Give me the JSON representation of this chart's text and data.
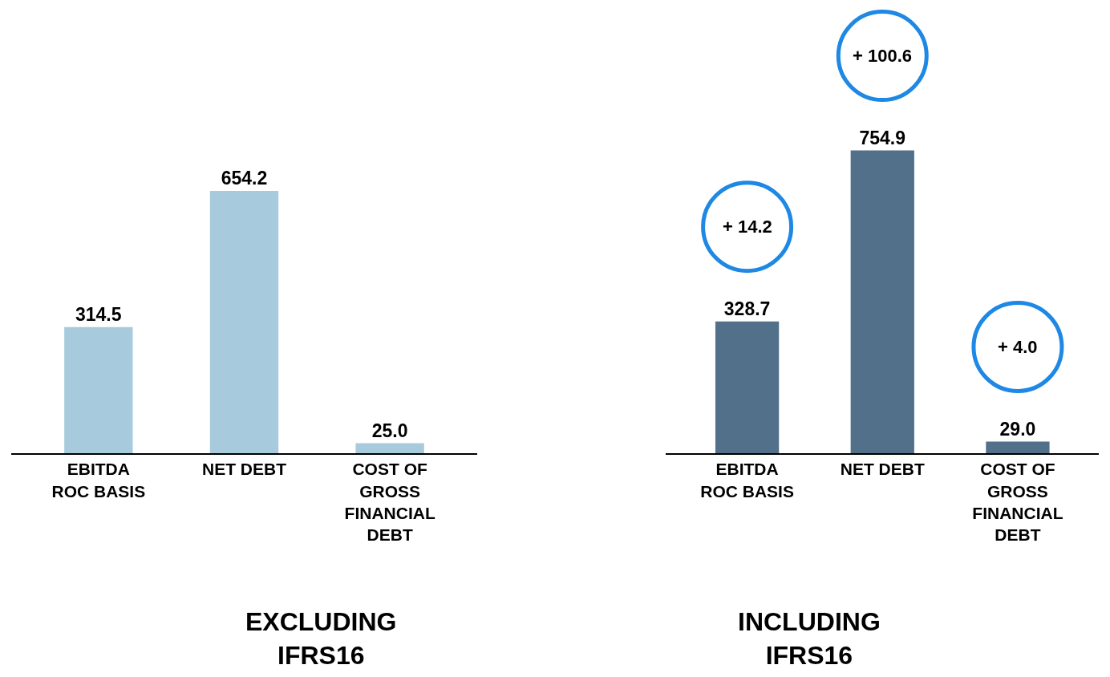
{
  "chart_data": [
    {
      "type": "bar",
      "title": "EXCLUDING\nIFRS16",
      "categories": [
        "EBITDA\nROC BASIS",
        "NET DEBT",
        "COST OF\nGROSS\nFINANCIAL\nDEBT"
      ],
      "values": [
        314.5,
        654.2,
        25.0
      ],
      "value_labels": [
        "314.5",
        "654.2",
        "25.0"
      ],
      "color": "#a7cbdd",
      "ylim": [
        0,
        1130
      ]
    },
    {
      "type": "bar",
      "title": "INCLUDING\nIFRS16",
      "categories": [
        "EBITDA\nROC BASIS",
        "NET DEBT",
        "COST OF\nGROSS\nFINANCIAL\nDEBT"
      ],
      "values": [
        328.7,
        754.9,
        29.0
      ],
      "value_labels": [
        "328.7",
        "754.9",
        "29.0"
      ],
      "color": "#53708a",
      "ylim": [
        0,
        1130
      ],
      "annotations": [
        "+ 14.2",
        "+ 100.6",
        "+ 4.0"
      ]
    }
  ]
}
